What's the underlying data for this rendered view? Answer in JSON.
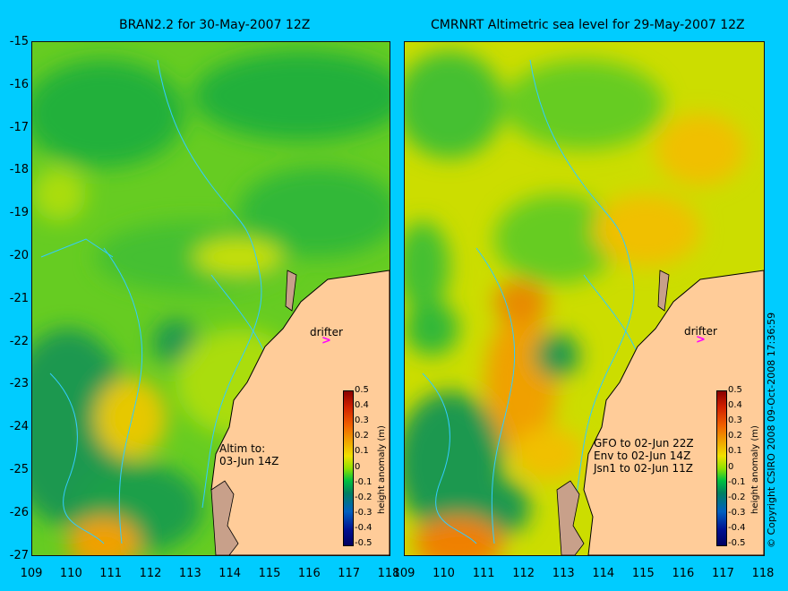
{
  "left_panel": {
    "title": "BRAN2.2 for 30-May-2007 12Z",
    "note_line1": "Altim to:",
    "note_line2": "03-Jun 14Z"
  },
  "right_panel": {
    "title": "CMRNRT Altimetric sea level  for 29-May-2007 12Z",
    "note_line1": "GFO to 02-Jun 22Z",
    "note_line2": "Env to 02-Jun 14Z",
    "note_line3": "Jsn1 to 02-Jun 11Z"
  },
  "drifter_label": "drifter",
  "drifter_marker": ">",
  "y_axis": [
    "-15",
    "-16",
    "-17",
    "-18",
    "-19",
    "-20",
    "-21",
    "-22",
    "-23",
    "-24",
    "-25",
    "-26",
    "-27"
  ],
  "x_axis": [
    "109",
    "110",
    "111",
    "112",
    "113",
    "114",
    "115",
    "116",
    "117",
    "118"
  ],
  "colorbar": {
    "ticks": [
      "0.5",
      "0.4",
      "0.3",
      "0.2",
      "0.1",
      "0",
      "-0.1",
      "-0.2",
      "-0.3",
      "-0.4",
      "-0.5"
    ],
    "label": "height anomaly (m)"
  },
  "copyright": "© Copyright CSIRO 2008    09-Oct-2008 17:36:59",
  "colors": {
    "background": "#00ccff",
    "land": "#ffcc99",
    "drifter": "#ff00ff",
    "bathymetry": "#33ccff"
  }
}
